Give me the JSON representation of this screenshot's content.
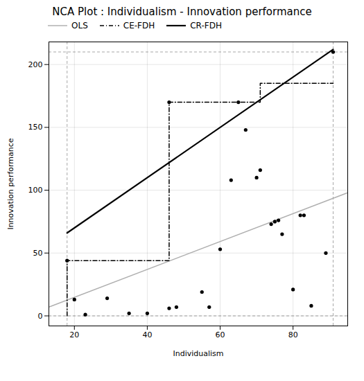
{
  "chart_data": {
    "type": "scatter",
    "title": "NCA Plot : Individualism - Innovation performance",
    "xlabel": "Individualism",
    "ylabel": "Innovation performance",
    "xlim": [
      13,
      95
    ],
    "ylim": [
      -8,
      218
    ],
    "xticks": [
      20,
      40,
      60,
      80
    ],
    "yticks": [
      0,
      50,
      100,
      150,
      200
    ],
    "grid": true,
    "legend": "upper left",
    "color": "#000000",
    "x": [
      18,
      20,
      23,
      29,
      35,
      40,
      46,
      46,
      48,
      55,
      57,
      60,
      63,
      65,
      67,
      70,
      71,
      74,
      75,
      76,
      77,
      80,
      82,
      83,
      85,
      89,
      91
    ],
    "values": [
      44,
      13,
      1,
      14,
      2,
      2,
      170,
      6,
      7,
      19,
      7,
      53,
      108,
      170,
      148,
      110,
      116,
      73,
      75,
      76,
      65,
      21,
      80,
      80,
      8,
      50,
      210
    ],
    "series": [
      {
        "name": "OLS",
        "type": "line",
        "color": "#b0b0b0",
        "line_style": "solid",
        "x": [
          13,
          95
        ],
        "values": [
          7.0,
          98.0
        ]
      },
      {
        "name": "CE-FDH",
        "type": "line",
        "color": "#000000",
        "line_style": "dashdot",
        "x": [
          18,
          18,
          46,
          46,
          71,
          71,
          91
        ],
        "values": [
          0,
          44,
          44,
          170,
          170,
          185,
          185
        ]
      },
      {
        "name": "CR-FDH",
        "type": "line",
        "color": "#000000",
        "line_style": "solid",
        "x": [
          18,
          91
        ],
        "values": [
          66,
          212
        ]
      }
    ],
    "boundary_vlines": [
      18,
      91
    ],
    "boundary_hlines": [
      0,
      210
    ]
  }
}
